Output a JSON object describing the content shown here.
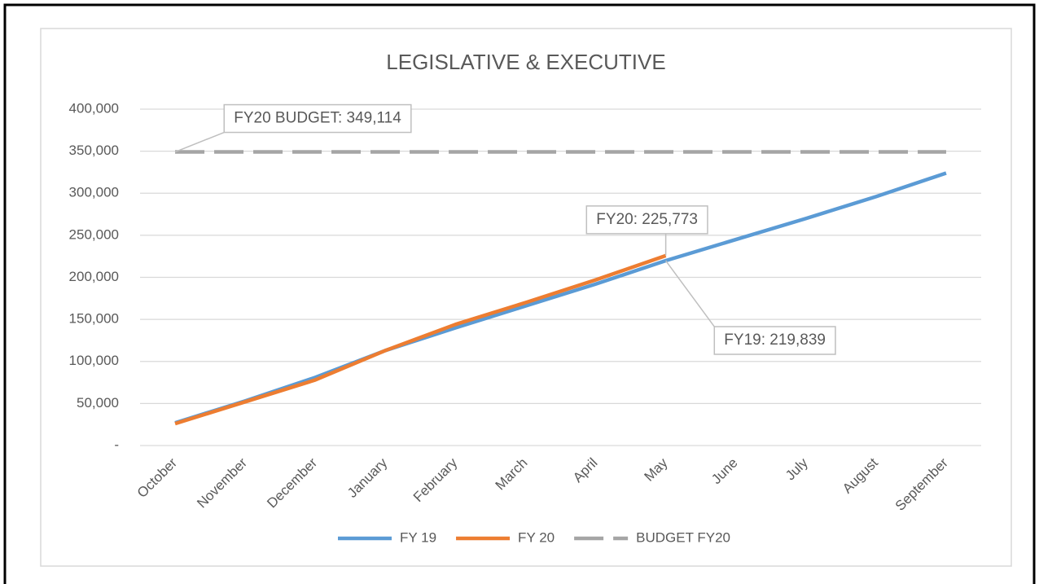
{
  "chart_data": {
    "type": "line",
    "title": "LEGISLATIVE & EXECUTIVE",
    "categories": [
      "October",
      "November",
      "December",
      "January",
      "February",
      "March",
      "April",
      "May",
      "June",
      "July",
      "August",
      "September"
    ],
    "series": [
      {
        "name": "FY 19",
        "color": "#5b9bd5",
        "values": [
          27000,
          53000,
          81000,
          113000,
          140000,
          166000,
          192000,
          219839,
          245000,
          270000,
          296000,
          324000
        ],
        "value_labels": [
          null,
          null,
          null,
          null,
          null,
          null,
          null,
          "FY19: 219,839",
          null,
          null,
          null,
          null
        ]
      },
      {
        "name": "FY 20",
        "color": "#ed7d31",
        "values": [
          26000,
          52000,
          78000,
          113000,
          144000,
          170000,
          197000,
          225773,
          null,
          null,
          null,
          null
        ],
        "value_labels": [
          null,
          null,
          null,
          null,
          null,
          null,
          null,
          "FY20:  225,773",
          null,
          null,
          null,
          null
        ]
      },
      {
        "name": "BUDGET FY20",
        "color": "#a5a5a5",
        "dashed": true,
        "values": [
          349114,
          349114,
          349114,
          349114,
          349114,
          349114,
          349114,
          349114,
          349114,
          349114,
          349114,
          349114
        ],
        "value_labels": [
          "FY20 BUDGET: 349,114",
          null,
          null,
          null,
          null,
          null,
          null,
          null,
          null,
          null,
          null,
          null
        ]
      }
    ],
    "ylim": [
      0,
      400000
    ],
    "yticks": [
      {
        "value": 0,
        "label": "-"
      },
      {
        "value": 50000,
        "label": "50,000"
      },
      {
        "value": 100000,
        "label": "100,000"
      },
      {
        "value": 150000,
        "label": "150,000"
      },
      {
        "value": 200000,
        "label": "200,000"
      },
      {
        "value": 250000,
        "label": "250,000"
      },
      {
        "value": 300000,
        "label": "300,000"
      },
      {
        "value": 350000,
        "label": "350,000"
      },
      {
        "value": 400000,
        "label": "400,000"
      }
    ],
    "grid": true,
    "legend": "bottom"
  }
}
